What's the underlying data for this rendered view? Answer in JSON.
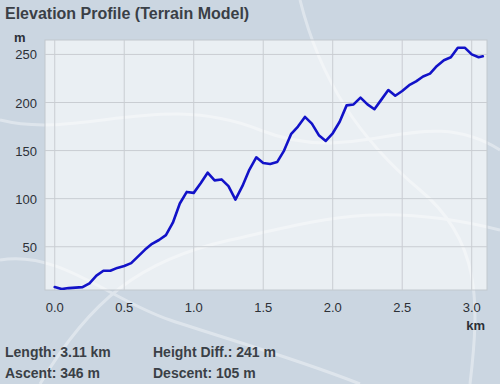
{
  "chart_data": {
    "type": "line",
    "title": "Elevation Profile (Terrain Model)",
    "y_label": "m",
    "x_label": "km",
    "x": [
      0.0,
      0.05,
      0.1,
      0.2,
      0.25,
      0.3,
      0.35,
      0.4,
      0.45,
      0.5,
      0.55,
      0.6,
      0.65,
      0.7,
      0.75,
      0.8,
      0.85,
      0.9,
      0.95,
      1.0,
      1.05,
      1.1,
      1.15,
      1.2,
      1.25,
      1.3,
      1.35,
      1.4,
      1.45,
      1.5,
      1.55,
      1.6,
      1.65,
      1.7,
      1.75,
      1.8,
      1.85,
      1.9,
      1.95,
      2.0,
      2.05,
      2.1,
      2.15,
      2.2,
      2.25,
      2.3,
      2.35,
      2.4,
      2.45,
      2.5,
      2.55,
      2.6,
      2.65,
      2.7,
      2.75,
      2.8,
      2.85,
      2.9,
      2.95,
      3.0,
      3.05,
      3.08
    ],
    "values": [
      8,
      6,
      7,
      8,
      12,
      20,
      25,
      25,
      28,
      30,
      33,
      40,
      47,
      53,
      57,
      62,
      75,
      95,
      107,
      106,
      116,
      127,
      119,
      120,
      113,
      99,
      113,
      130,
      143,
      137,
      136,
      138,
      150,
      167,
      175,
      185,
      178,
      166,
      160,
      168,
      180,
      197,
      198,
      205,
      198,
      193,
      203,
      213,
      207,
      212,
      218,
      222,
      227,
      230,
      238,
      244,
      247,
      257,
      257,
      250,
      247,
      248
    ],
    "color": "#1212c8",
    "xlim": [
      -0.07,
      3.11
    ],
    "ylim": [
      5,
      265
    ],
    "xticks": [
      {
        "value": 0,
        "label": "0.0"
      },
      0.5,
      {
        "value": 1,
        "label": "1.0"
      },
      1.5,
      {
        "value": 2,
        "label": "2.0"
      },
      2.5,
      {
        "value": 3,
        "label": "3.0"
      }
    ],
    "yticks": [
      50,
      100,
      150,
      200,
      250
    ],
    "grid": true,
    "annotations": [
      "Length: 3.11 km",
      "Height Diff.: 241 m",
      "Ascent: 346 m",
      "Descent: 105 m"
    ]
  }
}
